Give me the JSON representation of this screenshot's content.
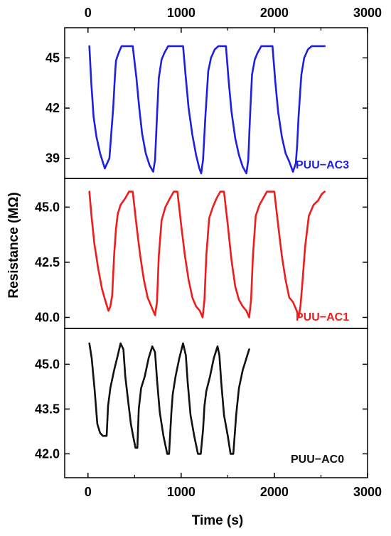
{
  "chart_data": {
    "type": "line",
    "xlabel": "Time (s)",
    "ylabel": "Resistance (MΩ)",
    "x_range": [
      -250,
      3000
    ],
    "x_ticks": [
      0,
      1000,
      2000,
      3000
    ],
    "x_tick_labels": [
      "0",
      "1000",
      "2000",
      "3000"
    ],
    "panels": [
      {
        "label": "PUU−AC3",
        "color": "#1f1fe0",
        "ylim": [
          37.8,
          46.8
        ],
        "y_ticks": [
          39,
          42,
          45
        ],
        "y_tick_labels": [
          "39",
          "42",
          "45"
        ],
        "x": [
          15,
          35,
          60,
          90,
          130,
          180,
          230,
          270,
          290,
          300,
          310,
          330,
          360,
          400,
          440,
          480,
          520,
          550,
          580,
          620,
          660,
          700,
          720,
          740,
          760,
          790,
          820,
          860,
          900,
          940,
          980,
          1020,
          1050,
          1080,
          1120,
          1160,
          1195,
          1215,
          1235,
          1260,
          1290,
          1320,
          1360,
          1400,
          1440,
          1480,
          1510,
          1540,
          1580,
          1620,
          1660,
          1700,
          1720,
          1740,
          1760,
          1790,
          1820,
          1860,
          1900,
          1940,
          1980,
          2010,
          2040,
          2080,
          2120,
          2160,
          2200,
          2230,
          2245,
          2260,
          2290,
          2320,
          2360,
          2400,
          2440,
          2480,
          2510,
          2540
        ],
        "y": [
          45.7,
          43.5,
          41.5,
          40.3,
          39.3,
          38.4,
          39.0,
          42.0,
          44.0,
          44.8,
          45.0,
          45.3,
          45.7,
          45.7,
          45.7,
          45.7,
          43.8,
          42.0,
          40.5,
          39.3,
          38.6,
          38.2,
          38.9,
          41.5,
          43.8,
          44.9,
          45.3,
          45.7,
          45.7,
          45.7,
          45.7,
          45.7,
          43.8,
          42.0,
          40.4,
          39.2,
          38.4,
          38.1,
          38.9,
          41.5,
          44.2,
          45.0,
          45.5,
          45.7,
          45.7,
          45.7,
          43.6,
          41.8,
          40.2,
          39.2,
          38.5,
          38.1,
          38.9,
          41.6,
          44.0,
          44.9,
          45.3,
          45.7,
          45.7,
          45.7,
          45.7,
          43.6,
          41.8,
          40.3,
          39.3,
          38.8,
          38.2,
          38.7,
          39.8,
          41.5,
          44.0,
          45.0,
          45.5,
          45.7,
          45.7,
          45.7,
          45.7,
          45.7
        ]
      },
      {
        "label": "PUU−AC1",
        "color": "#ee1c1c",
        "ylim": [
          39.5,
          46.3
        ],
        "y_ticks": [
          40.0,
          42.5,
          45.0
        ],
        "y_tick_labels": [
          "40.0",
          "42.5",
          "45.0"
        ],
        "x": [
          15,
          40,
          70,
          110,
          150,
          190,
          220,
          240,
          260,
          280,
          300,
          320,
          350,
          400,
          440,
          480,
          520,
          560,
          600,
          640,
          680,
          720,
          740,
          760,
          790,
          830,
          880,
          920,
          960,
          1000,
          1040,
          1080,
          1120,
          1160,
          1200,
          1230,
          1250,
          1270,
          1300,
          1340,
          1380,
          1420,
          1460,
          1500,
          1540,
          1580,
          1620,
          1660,
          1700,
          1730,
          1750,
          1770,
          1800,
          1840,
          1880,
          1920,
          1960,
          2000,
          2040,
          2080,
          2120,
          2160,
          2200,
          2240,
          2260,
          2280,
          2300,
          2330,
          2370,
          2420,
          2470,
          2510,
          2540
        ],
        "y": [
          45.7,
          44.5,
          43.3,
          42.2,
          41.3,
          40.7,
          40.3,
          40.5,
          41.0,
          42.8,
          44.0,
          44.7,
          45.1,
          45.4,
          45.7,
          45.7,
          44.2,
          42.8,
          41.7,
          40.9,
          40.5,
          40.1,
          40.7,
          42.8,
          44.4,
          45.0,
          45.4,
          45.7,
          45.7,
          44.2,
          42.8,
          41.7,
          40.9,
          40.5,
          40.3,
          40.0,
          40.8,
          42.8,
          44.5,
          45.0,
          45.4,
          45.7,
          45.7,
          44.2,
          42.6,
          41.4,
          40.8,
          40.5,
          40.3,
          40.0,
          40.8,
          42.8,
          44.6,
          45.1,
          45.4,
          45.7,
          45.7,
          45.7,
          44.2,
          42.8,
          41.7,
          40.9,
          40.7,
          40.3,
          40.0,
          40.5,
          41.5,
          43.2,
          44.6,
          45.1,
          45.3,
          45.6,
          45.7
        ]
      },
      {
        "label": "PUU−AC0",
        "color": "#111111",
        "ylim": [
          41.2,
          46.2
        ],
        "y_ticks": [
          42.0,
          43.5,
          45.0
        ],
        "y_tick_labels": [
          "42.0",
          "43.5",
          "45.0"
        ],
        "x": [
          15,
          40,
          70,
          100,
          130,
          160,
          200,
          215,
          240,
          280,
          320,
          350,
          380,
          400,
          430,
          460,
          490,
          510,
          530,
          545,
          570,
          610,
          650,
          690,
          720,
          740,
          770,
          810,
          850,
          870,
          895,
          910,
          940,
          980,
          1020,
          1050,
          1070,
          1100,
          1140,
          1180,
          1210,
          1235,
          1250,
          1270,
          1310,
          1350,
          1390,
          1410,
          1430,
          1460,
          1500,
          1530,
          1560,
          1590,
          1620,
          1660,
          1700,
          1730
        ],
        "y": [
          45.7,
          45.2,
          44.2,
          43.0,
          42.7,
          42.6,
          42.6,
          43.6,
          44.2,
          44.8,
          45.3,
          45.7,
          45.5,
          44.6,
          43.8,
          43.0,
          42.5,
          42.2,
          42.2,
          43.5,
          44.2,
          44.6,
          45.2,
          45.6,
          45.4,
          44.5,
          43.4,
          42.6,
          42.0,
          42.0,
          43.4,
          44.0,
          44.6,
          45.2,
          45.7,
          45.3,
          44.4,
          43.3,
          42.6,
          42.0,
          42.0,
          42.8,
          43.6,
          44.1,
          44.6,
          45.2,
          45.6,
          45.3,
          44.4,
          43.3,
          42.6,
          42.0,
          42.0,
          43.3,
          44.2,
          44.8,
          45.2,
          45.5
        ]
      }
    ]
  }
}
